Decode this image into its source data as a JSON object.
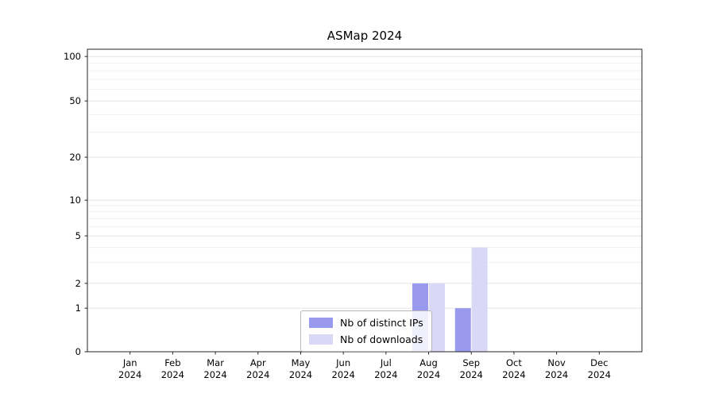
{
  "chart_data": {
    "type": "bar",
    "title": "ASMap 2024",
    "categories": [
      "Jan",
      "Feb",
      "Mar",
      "Apr",
      "May",
      "Jun",
      "Jul",
      "Aug",
      "Sep",
      "Oct",
      "Nov",
      "Dec"
    ],
    "year": "2024",
    "series": [
      {
        "name": "Nb of distinct IPs",
        "color": "#9999ee",
        "values": [
          0,
          0,
          0,
          0,
          0,
          0,
          0,
          2,
          1,
          0,
          0,
          0
        ]
      },
      {
        "name": "Nb of downloads",
        "color": "#d9d9f7",
        "values": [
          0,
          0,
          0,
          0,
          0,
          0,
          0,
          2,
          4,
          0,
          0,
          0
        ]
      }
    ],
    "yticks": [
      0,
      1,
      2,
      5,
      10,
      20,
      50,
      100
    ],
    "ylim": [
      0,
      110
    ],
    "yscale": "symlog",
    "grid": "horizontal",
    "legend_position": "lower-center"
  }
}
